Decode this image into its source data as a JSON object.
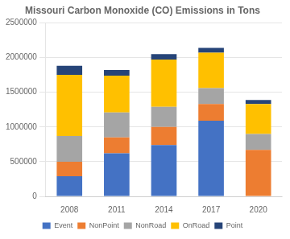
{
  "chart_data": {
    "type": "bar",
    "title": "Missouri Carbon Monoxide (CO) Emissions in Tons",
    "categories": [
      "2008",
      "2011",
      "2014",
      "2017",
      "2020"
    ],
    "series": [
      {
        "name": "Event",
        "color": "#4472C4",
        "values": [
          290000,
          620000,
          740000,
          1090000,
          0
        ]
      },
      {
        "name": "NonPoint",
        "color": "#ED7D31",
        "values": [
          210000,
          230000,
          260000,
          240000,
          670000
        ]
      },
      {
        "name": "NonRoad",
        "color": "#A5A5A5",
        "values": [
          370000,
          360000,
          290000,
          230000,
          230000
        ]
      },
      {
        "name": "OnRoad",
        "color": "#FFC000",
        "values": [
          880000,
          530000,
          680000,
          510000,
          430000
        ]
      },
      {
        "name": "Point",
        "color": "#264478",
        "values": [
          130000,
          80000,
          80000,
          70000,
          60000
        ]
      }
    ],
    "stacked": true,
    "ylim": [
      0,
      2500000
    ],
    "yticks": [
      0,
      500000,
      1000000,
      1500000,
      2000000,
      2500000
    ],
    "grid": true,
    "legend": "bottom"
  }
}
